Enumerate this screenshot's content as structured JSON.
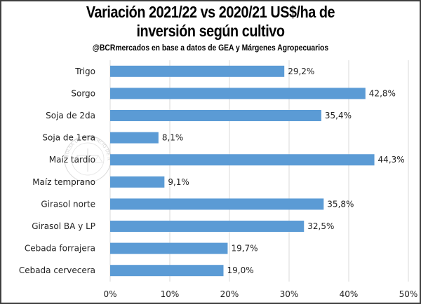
{
  "chart_data": {
    "type": "bar",
    "orientation": "horizontal",
    "title_line1": "Variación 2021/22 vs 2020/21 US$/ha de",
    "title_line2": "inversión según cultivo",
    "subtitle": "@BCRmercados  en base a datos de GEA y Márgenes Agropecuarios",
    "xlabel": "",
    "ylabel": "",
    "xlim": [
      0,
      50
    ],
    "x_ticks": [
      0,
      10,
      20,
      30,
      40,
      50
    ],
    "x_tick_labels": [
      "0%",
      "10%",
      "20%",
      "30%",
      "40%",
      "50%"
    ],
    "grid": true,
    "legend": "none",
    "categories": [
      "Trigo",
      "Sorgo",
      "Soja de 2da",
      "Soja de 1era",
      "Maíz tardío",
      "Maíz temprano",
      "Girasol norte",
      "Girasol BA y LP",
      "Cebada forrajera",
      "Cebada cervecera"
    ],
    "values": [
      29.2,
      42.8,
      35.4,
      8.1,
      44.3,
      9.1,
      35.8,
      32.5,
      19.7,
      19.0
    ],
    "value_labels": [
      "29,2%",
      "42,8%",
      "35,4%",
      "8,1%",
      "44,3%",
      "9,1%",
      "35,8%",
      "32,5%",
      "19,7%",
      "19,0%"
    ],
    "bar_color": "#5b9bd5",
    "watermark": "BOLSA DE COMERCIO DE ROSARIO"
  }
}
